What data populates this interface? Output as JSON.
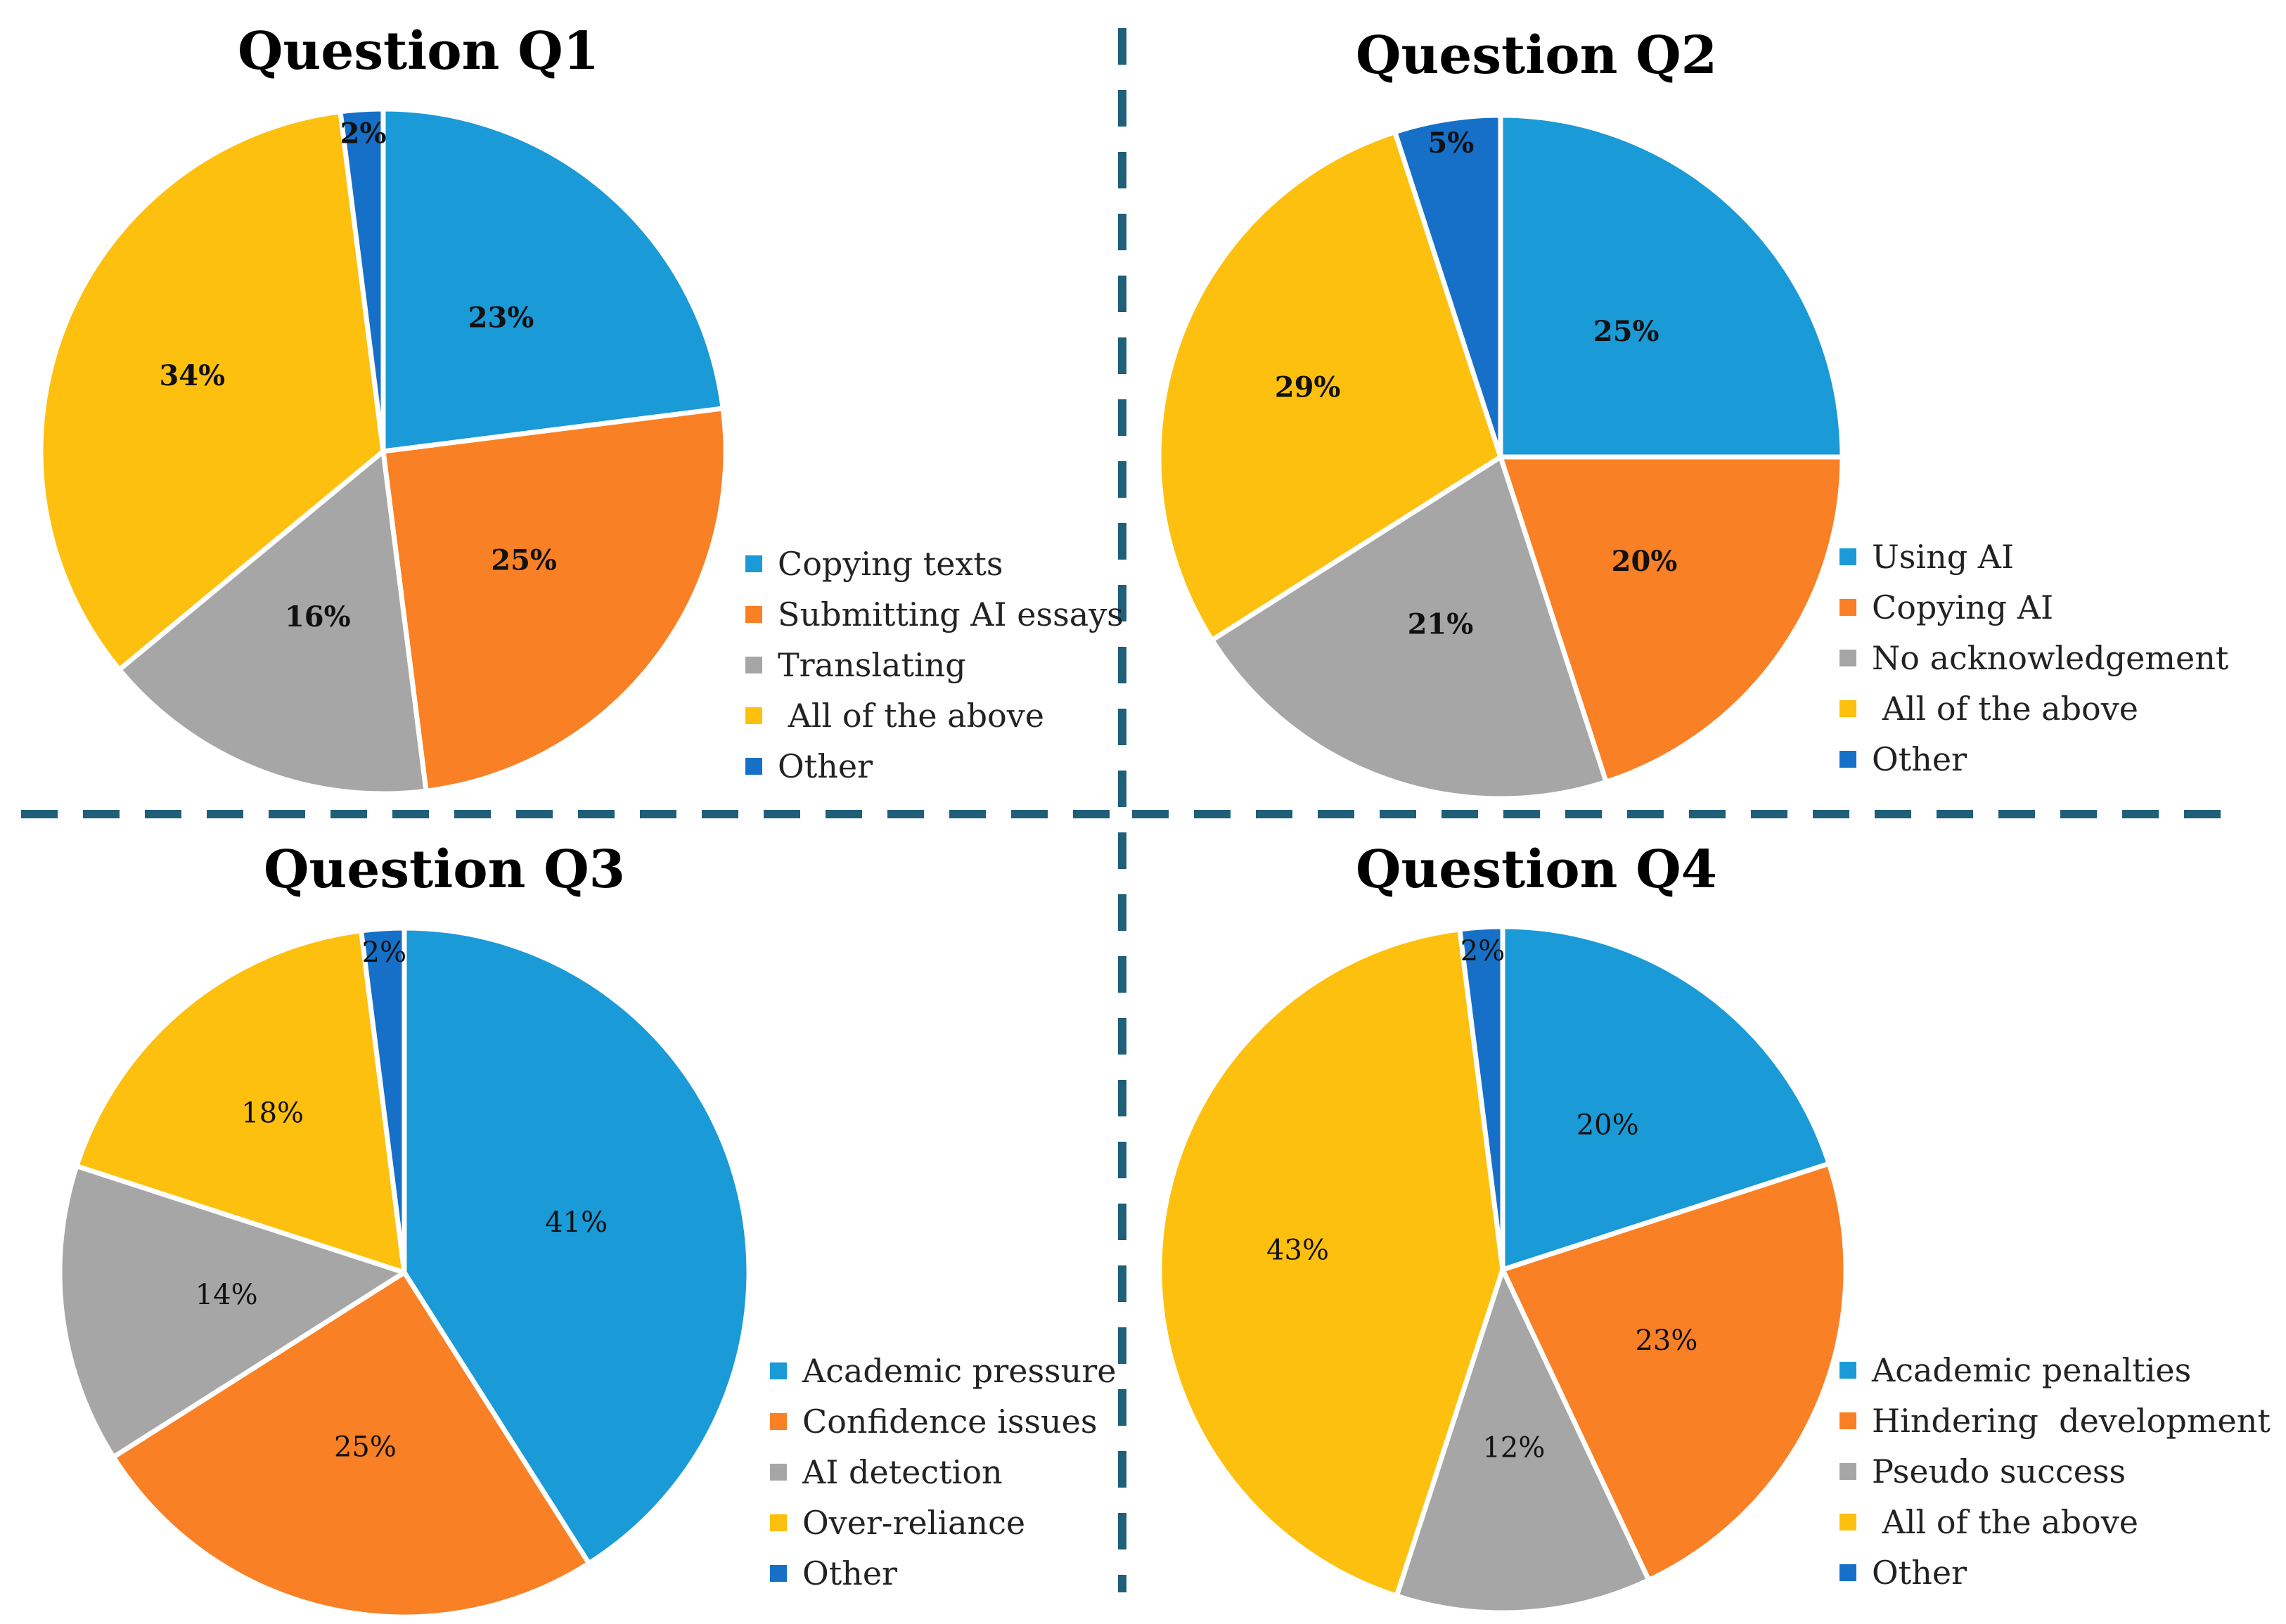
{
  "colors": {
    "blue": "#1a9ad6",
    "orange": "#f98025",
    "gray": "#a6a6a6",
    "yellow": "#fec00e",
    "darkblue": "#1670c8",
    "divider": "#1f5f7a"
  },
  "chart_data": [
    {
      "type": "pie",
      "title": "Question Q1",
      "labels_bold": true,
      "categories": [
        "Copying texts",
        "Submitting AI essays",
        "Translating",
        " All of the above",
        "Other"
      ],
      "values": [
        23,
        25,
        16,
        34,
        2
      ],
      "value_labels": [
        "23%",
        "25%",
        "16%",
        "34%",
        "2%"
      ],
      "legend": "right"
    },
    {
      "type": "pie",
      "title": "Question Q2",
      "labels_bold": true,
      "categories": [
        "Using AI",
        "Copying AI",
        "No acknowledgement",
        " All of the above",
        "Other"
      ],
      "values": [
        25,
        20,
        21,
        29,
        5
      ],
      "value_labels": [
        "25%",
        "20%",
        "21%",
        "29%",
        "5%"
      ],
      "legend": "right"
    },
    {
      "type": "pie",
      "title": "Question Q3",
      "labels_bold": false,
      "categories": [
        "Academic pressure",
        "Confidence issues",
        "AI detection",
        "Over-reliance",
        "Other"
      ],
      "values": [
        41,
        25,
        14,
        18,
        2
      ],
      "value_labels": [
        "41%",
        "25%",
        "14%",
        "18%",
        "2%"
      ],
      "legend": "right"
    },
    {
      "type": "pie",
      "title": "Question Q4",
      "labels_bold": false,
      "categories": [
        "Academic penalties",
        "Hindering  development",
        "Pseudo success",
        " All of the above",
        "Other"
      ],
      "values": [
        20,
        23,
        12,
        43,
        2
      ],
      "value_labels": [
        "20%",
        "23%",
        "12%",
        "43%",
        "2%"
      ],
      "legend": "right"
    }
  ]
}
